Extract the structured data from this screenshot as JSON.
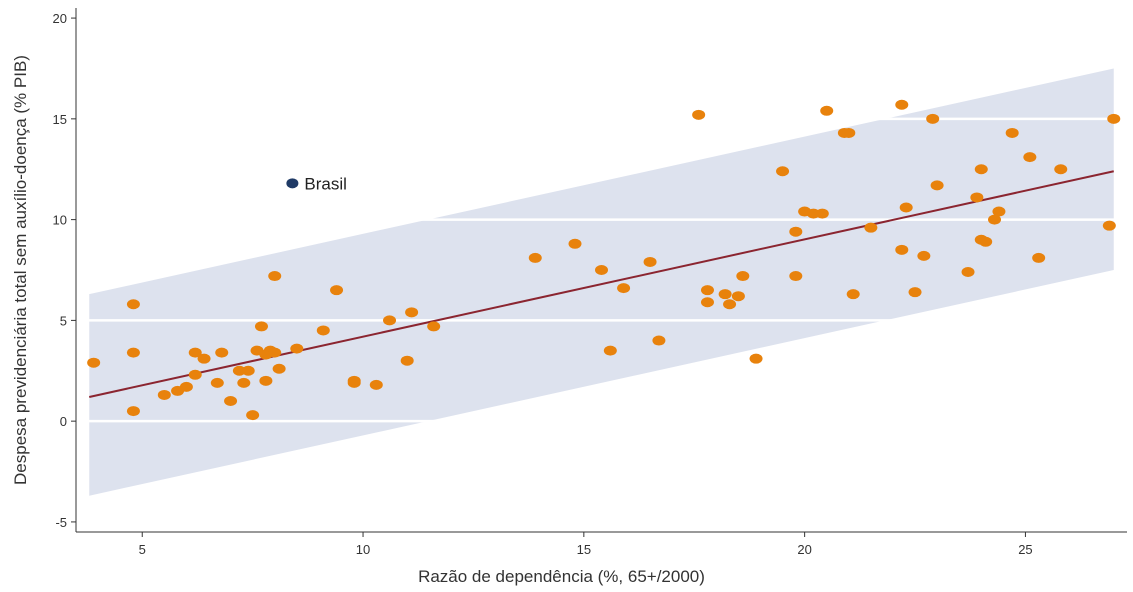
{
  "chart_data": {
    "type": "scatter",
    "title": "",
    "xlabel": "Razão de dependência (%, 65+/2000)",
    "ylabel": "Despesa previdenciária total sem auxílio-doença (% PIB)",
    "xlim": [
      3.5,
      27.3
    ],
    "ylim": [
      -5.5,
      20.5
    ],
    "x_ticks": [
      5,
      10,
      15,
      20,
      25
    ],
    "y_ticks": [
      -5,
      0,
      5,
      10,
      15,
      20
    ],
    "grid": "horizontal",
    "colors": {
      "points": "#e8820c",
      "highlight": "#1f3a66",
      "trend": "#8b2530",
      "band": "#dde2ee",
      "grid": "#ffffff",
      "axis": "#333333"
    },
    "trend_line": {
      "x": [
        3.8,
        27.0
      ],
      "y": [
        1.2,
        12.4
      ]
    },
    "confidence_band": {
      "x": [
        3.8,
        27.0
      ],
      "upper": [
        6.3,
        17.5
      ],
      "lower": [
        -3.7,
        7.5
      ]
    },
    "highlight": {
      "x": 8.4,
      "y": 11.8,
      "label": "Brasil"
    },
    "points": [
      {
        "x": 3.9,
        "y": 2.9
      },
      {
        "x": 4.8,
        "y": 5.8
      },
      {
        "x": 4.8,
        "y": 3.4
      },
      {
        "x": 4.8,
        "y": 0.5
      },
      {
        "x": 5.5,
        "y": 1.3
      },
      {
        "x": 5.8,
        "y": 1.5
      },
      {
        "x": 6.0,
        "y": 1.7
      },
      {
        "x": 6.2,
        "y": 3.4
      },
      {
        "x": 6.2,
        "y": 2.3
      },
      {
        "x": 6.4,
        "y": 3.1
      },
      {
        "x": 6.7,
        "y": 1.9
      },
      {
        "x": 6.8,
        "y": 3.4
      },
      {
        "x": 7.0,
        "y": 1.0
      },
      {
        "x": 7.2,
        "y": 2.5
      },
      {
        "x": 7.3,
        "y": 1.9
      },
      {
        "x": 7.4,
        "y": 2.5
      },
      {
        "x": 7.5,
        "y": 0.3
      },
      {
        "x": 7.6,
        "y": 3.5
      },
      {
        "x": 7.7,
        "y": 4.7
      },
      {
        "x": 7.8,
        "y": 3.3
      },
      {
        "x": 7.8,
        "y": 2.0
      },
      {
        "x": 7.9,
        "y": 3.5
      },
      {
        "x": 8.0,
        "y": 3.4
      },
      {
        "x": 8.0,
        "y": 7.2
      },
      {
        "x": 8.1,
        "y": 2.6
      },
      {
        "x": 8.5,
        "y": 3.6
      },
      {
        "x": 9.1,
        "y": 4.5
      },
      {
        "x": 9.4,
        "y": 6.5
      },
      {
        "x": 9.8,
        "y": 1.9
      },
      {
        "x": 9.8,
        "y": 2.0
      },
      {
        "x": 10.3,
        "y": 1.8
      },
      {
        "x": 10.6,
        "y": 5.0
      },
      {
        "x": 11.0,
        "y": 3.0
      },
      {
        "x": 11.1,
        "y": 5.4
      },
      {
        "x": 11.6,
        "y": 4.7
      },
      {
        "x": 13.9,
        "y": 8.1
      },
      {
        "x": 14.8,
        "y": 8.8
      },
      {
        "x": 15.4,
        "y": 7.5
      },
      {
        "x": 15.6,
        "y": 3.5
      },
      {
        "x": 15.9,
        "y": 6.6
      },
      {
        "x": 16.5,
        "y": 7.9
      },
      {
        "x": 16.7,
        "y": 4.0
      },
      {
        "x": 17.6,
        "y": 15.2
      },
      {
        "x": 17.8,
        "y": 6.5
      },
      {
        "x": 17.8,
        "y": 5.9
      },
      {
        "x": 18.2,
        "y": 6.3
      },
      {
        "x": 18.3,
        "y": 5.8
      },
      {
        "x": 18.5,
        "y": 6.2
      },
      {
        "x": 18.6,
        "y": 7.2
      },
      {
        "x": 18.9,
        "y": 3.1
      },
      {
        "x": 19.5,
        "y": 12.4
      },
      {
        "x": 19.8,
        "y": 9.4
      },
      {
        "x": 19.8,
        "y": 7.2
      },
      {
        "x": 20.0,
        "y": 10.4
      },
      {
        "x": 20.2,
        "y": 10.3
      },
      {
        "x": 20.4,
        "y": 10.3
      },
      {
        "x": 20.5,
        "y": 15.4
      },
      {
        "x": 20.9,
        "y": 14.3
      },
      {
        "x": 21.0,
        "y": 14.3
      },
      {
        "x": 21.1,
        "y": 6.3
      },
      {
        "x": 21.5,
        "y": 9.6
      },
      {
        "x": 22.2,
        "y": 15.7
      },
      {
        "x": 22.2,
        "y": 8.5
      },
      {
        "x": 22.3,
        "y": 10.6
      },
      {
        "x": 22.5,
        "y": 6.4
      },
      {
        "x": 22.7,
        "y": 8.2
      },
      {
        "x": 22.9,
        "y": 15.0
      },
      {
        "x": 23.0,
        "y": 11.7
      },
      {
        "x": 23.7,
        "y": 7.4
      },
      {
        "x": 23.9,
        "y": 11.1
      },
      {
        "x": 24.0,
        "y": 12.5
      },
      {
        "x": 24.0,
        "y": 9.0
      },
      {
        "x": 24.1,
        "y": 8.9
      },
      {
        "x": 24.3,
        "y": 10.0
      },
      {
        "x": 24.4,
        "y": 10.4
      },
      {
        "x": 24.7,
        "y": 14.3
      },
      {
        "x": 25.1,
        "y": 13.1
      },
      {
        "x": 25.3,
        "y": 8.1
      },
      {
        "x": 25.8,
        "y": 12.5
      },
      {
        "x": 26.9,
        "y": 9.7
      },
      {
        "x": 27.0,
        "y": 15.0
      }
    ]
  }
}
